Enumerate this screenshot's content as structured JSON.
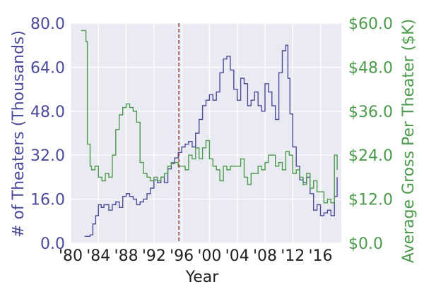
{
  "chart_data": {
    "type": "line",
    "xlabel": "Year",
    "ylabel_left": "# of Theaters (Thousands)",
    "ylabel_right": "Average Gross Per Theater ($K)",
    "xlim": [
      1980,
      2019
    ],
    "ylim_left": [
      0,
      80
    ],
    "ylim_right": [
      0,
      60
    ],
    "x_ticks": [
      1980,
      1984,
      1988,
      1992,
      1996,
      2000,
      2004,
      2008,
      2012,
      2016
    ],
    "x_tick_labels": [
      "'80",
      "'84",
      "'88",
      "'92",
      "'96",
      "'00",
      "'04",
      "'08",
      "'12",
      "'16"
    ],
    "left_ticks": [
      0,
      16,
      32,
      48,
      64,
      80
    ],
    "left_tick_labels": [
      "0.0",
      "16.0",
      "32.0",
      "48.0",
      "64.0",
      "80.0"
    ],
    "right_ticks": [
      0,
      12,
      24,
      36,
      48,
      60
    ],
    "right_tick_labels": [
      "$0.0",
      "$12.0",
      "$24.0",
      "$36.0",
      "$48.0",
      "$60.0"
    ],
    "vline": {
      "x": 1995.6
    },
    "grid": true,
    "colors": {
      "left": "#4b4b9a",
      "right": "#4c9a4c",
      "vline": "#a04848",
      "plot_bg": "#eaeaf2",
      "grid": "#ffffff"
    },
    "series": [
      {
        "name": "Theaters (Thousands)",
        "axis": "left",
        "x": [
          1982.0,
          1982.8,
          1983.2,
          1983.6,
          1984.0,
          1984.4,
          1984.8,
          1985.5,
          1986.0,
          1986.5,
          1987.0,
          1987.5,
          1988.0,
          1988.5,
          1989.0,
          1989.5,
          1990.0,
          1990.5,
          1991.0,
          1991.5,
          1992.0,
          1992.5,
          1993.0,
          1993.5,
          1994.0,
          1994.5,
          1995.0,
          1995.5,
          1996.0,
          1996.5,
          1997.0,
          1997.5,
          1998.0,
          1998.5,
          1999.0,
          1999.5,
          2000.0,
          2000.5,
          2001.0,
          2001.5,
          2002.0,
          2002.5,
          2003.0,
          2003.5,
          2004.0,
          2004.5,
          2005.0,
          2005.5,
          2006.0,
          2006.5,
          2007.0,
          2007.5,
          2008.0,
          2008.5,
          2009.0,
          2009.5,
          2010.0,
          2010.5,
          2011.0,
          2011.3,
          2011.6,
          2012.0,
          2012.5,
          2013.0,
          2013.5,
          2014.0,
          2014.5,
          2015.0,
          2015.5,
          2016.0,
          2016.5,
          2017.0,
          2017.5,
          2018.0,
          2018.4
        ],
        "values": [
          2.5,
          3,
          7,
          10,
          14,
          13,
          14,
          12,
          14,
          15,
          13,
          17,
          18,
          17,
          16,
          14,
          15,
          16,
          18,
          20,
          23,
          22,
          24,
          22,
          27,
          29,
          31,
          33,
          35,
          36,
          37,
          35,
          40,
          45,
          50,
          52,
          54,
          52,
          55,
          62,
          67,
          68,
          63,
          56,
          52,
          60,
          58,
          50,
          52,
          55,
          50,
          48,
          58,
          55,
          50,
          45,
          62,
          70,
          72,
          60,
          47,
          35,
          28,
          23,
          22,
          24,
          18,
          12,
          14,
          10,
          11,
          12,
          10,
          17,
          24
        ]
      },
      {
        "name": "Average Gross Per Theater ($K)",
        "axis": "right",
        "x": [
          1981.5,
          1982.1,
          1982.2,
          1982.4,
          1982.6,
          1982.8,
          1983.0,
          1983.5,
          1984.0,
          1984.5,
          1985.0,
          1985.5,
          1986.0,
          1986.5,
          1987.0,
          1987.5,
          1988.0,
          1988.5,
          1989.0,
          1989.5,
          1990.0,
          1990.5,
          1991.0,
          1991.5,
          1992.0,
          1992.5,
          1993.0,
          1993.5,
          1994.0,
          1994.5,
          1995.0,
          1995.5,
          1996.0,
          1996.5,
          1997.0,
          1997.5,
          1998.0,
          1998.5,
          1999.0,
          1999.5,
          2000.0,
          2000.5,
          2001.0,
          2001.5,
          2002.0,
          2002.5,
          2003.0,
          2003.5,
          2004.0,
          2004.5,
          2005.0,
          2005.5,
          2006.0,
          2006.5,
          2007.0,
          2007.5,
          2008.0,
          2008.5,
          2009.0,
          2009.5,
          2010.0,
          2010.5,
          2011.0,
          2011.5,
          2012.0,
          2012.5,
          2013.0,
          2013.5,
          2014.0,
          2014.5,
          2015.0,
          2015.5,
          2016.0,
          2016.5,
          2017.0,
          2017.5,
          2018.0,
          2018.4
        ],
        "values": [
          58,
          58,
          55,
          27,
          27,
          21,
          20,
          21,
          18,
          17,
          19,
          18,
          24,
          31,
          35,
          37,
          38,
          37,
          36,
          33,
          22,
          19,
          18,
          17,
          18,
          17,
          18,
          19,
          21,
          22,
          22,
          21,
          21,
          20,
          24,
          23,
          26,
          23,
          26,
          28,
          23,
          21,
          20,
          17,
          21,
          20,
          21,
          21,
          21,
          23,
          18,
          16,
          19,
          19,
          21,
          20,
          22,
          24,
          24,
          21,
          22,
          20,
          25,
          24,
          19,
          20,
          18,
          16,
          19,
          15,
          17,
          14,
          14,
          11,
          12,
          11,
          24,
          20
        ]
      }
    ]
  }
}
